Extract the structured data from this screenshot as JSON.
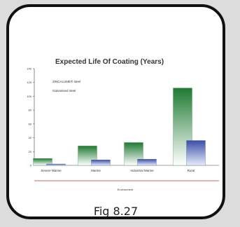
{
  "caption": "Fig 8.27",
  "colors": {
    "series_1": "#2e8b3e",
    "series_2": "#4a5fb0",
    "axis": "#444444",
    "group_line": "#c0392b"
  },
  "chart_data": {
    "type": "bar",
    "title": "Expected Life Of Coating (Years)",
    "categories": [
      "Severe Marine",
      "Marine",
      "Industrial Marine",
      "Rural"
    ],
    "group_label": "Environment",
    "series": [
      {
        "name": "ZINCALUME® steel",
        "values": [
          10,
          28,
          33,
          112
        ]
      },
      {
        "name": "Galvanised steel",
        "values": [
          2,
          8,
          9,
          36
        ]
      }
    ],
    "y_ticks": [
      0,
      20,
      40,
      60,
      80,
      100,
      120,
      140
    ],
    "ylim": [
      0,
      140
    ],
    "legend_position": "top-left",
    "grid": false
  }
}
